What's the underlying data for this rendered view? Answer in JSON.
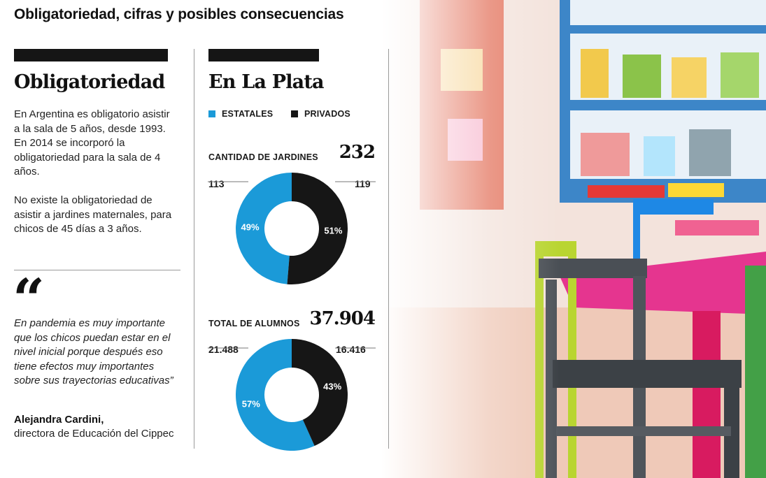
{
  "header": {
    "title": "Obligatoriedad, cifras y posibles consecuencias"
  },
  "left": {
    "heading": "Obligatoriedad",
    "paragraphs": [
      "En Argentina es obligatorio asistir a la sala de 5 años, desde 1993. En 2014 se incorporó la obligatoriedad para la sala de 4 años.",
      "No existe la obligatoriedad de asistir a jardines maternales, para chicos de 45 días a 3 años."
    ],
    "quote_mark": "“",
    "quote": "En pandemia es muy importante que los chicos puedan estar en el nivel inicial porque después eso tiene efectos muy importantes sobre sus trayectorias educativas”",
    "author": "Alejandra Cardini,",
    "author_role": "directora de Educación del Cippec"
  },
  "right": {
    "heading": "En La Plata",
    "legend": [
      {
        "label": "ESTATALES",
        "color": "#1b9ad8"
      },
      {
        "label": "PRIVADOS",
        "color": "#161616"
      }
    ]
  },
  "chart_data": [
    {
      "type": "pie",
      "title": "CANTIDAD DE JARDINES",
      "total": "232",
      "series": [
        {
          "name": "ESTATALES",
          "value": 113,
          "value_label": "113",
          "percent": 49,
          "percent_label": "49%",
          "color": "#1b9ad8"
        },
        {
          "name": "PRIVADOS",
          "value": 119,
          "value_label": "119",
          "percent": 51,
          "percent_label": "51%",
          "color": "#161616"
        }
      ]
    },
    {
      "type": "pie",
      "title": "TOTAL DE ALUMNOS",
      "total": "37.904",
      "series": [
        {
          "name": "ESTATALES",
          "value": 21488,
          "value_label": "21.488",
          "percent": 57,
          "percent_label": "57%",
          "color": "#1b9ad8"
        },
        {
          "name": "PRIVADOS",
          "value": 16416,
          "value_label": "16.416",
          "percent": 43,
          "percent_label": "43%",
          "color": "#161616"
        }
      ]
    }
  ]
}
